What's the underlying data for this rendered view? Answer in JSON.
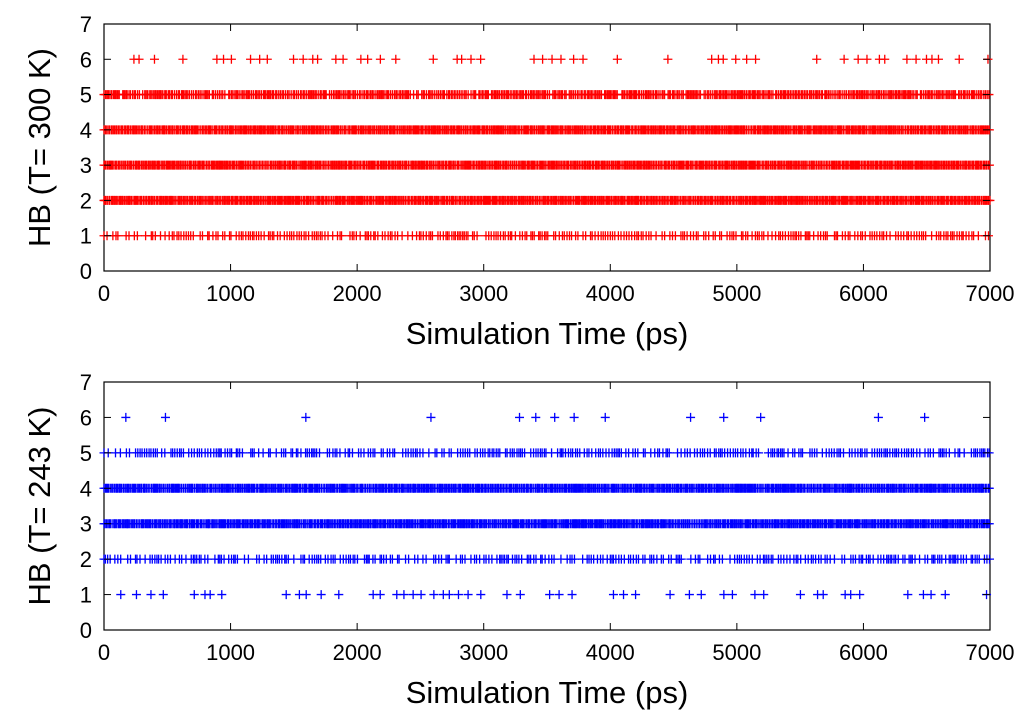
{
  "chart_data": [
    {
      "type": "scatter",
      "xlabel": "Simulation Time (ps)",
      "ylabel": "HB (T= 300 K)",
      "xlim": [
        0,
        7000
      ],
      "ylim": [
        0,
        7
      ],
      "xticks": [
        "0",
        "1000",
        "2000",
        "3000",
        "4000",
        "5000",
        "6000",
        "7000"
      ],
      "yticks": [
        "0",
        "1",
        "2",
        "3",
        "4",
        "5",
        "6",
        "7"
      ],
      "marker": "+",
      "color": "#ff0000",
      "grid": false,
      "legend": "none",
      "series": [
        {
          "y": 6,
          "density": "sparse",
          "x_min": 100,
          "x_max": 7000
        },
        {
          "y": 5,
          "density": "near-continuous",
          "x_min": 0,
          "x_max": 7000
        },
        {
          "y": 4,
          "density": "continuous",
          "x_min": 0,
          "x_max": 7000
        },
        {
          "y": 3,
          "density": "continuous",
          "x_min": 0,
          "x_max": 7000
        },
        {
          "y": 2,
          "density": "continuous",
          "x_min": 0,
          "x_max": 7000
        },
        {
          "y": 1,
          "density": "dense",
          "x_min": 0,
          "x_max": 7000
        }
      ]
    },
    {
      "type": "scatter",
      "xlabel": "Simulation Time (ps)",
      "ylabel": "HB (T= 243 K)",
      "xlim": [
        0,
        7000
      ],
      "ylim": [
        0,
        7
      ],
      "xticks": [
        "0",
        "1000",
        "2000",
        "3000",
        "4000",
        "5000",
        "6000",
        "7000"
      ],
      "yticks": [
        "0",
        "1",
        "2",
        "3",
        "4",
        "5",
        "6",
        "7"
      ],
      "marker": "+",
      "color": "#0000ff",
      "grid": false,
      "legend": "none",
      "series": [
        {
          "y": 6,
          "density": "very-sparse",
          "x_min": 100,
          "x_max": 7000
        },
        {
          "y": 5,
          "density": "dense",
          "x_min": 0,
          "x_max": 7000
        },
        {
          "y": 4,
          "density": "continuous",
          "x_min": 0,
          "x_max": 7000
        },
        {
          "y": 3,
          "density": "continuous",
          "x_min": 0,
          "x_max": 7000
        },
        {
          "y": 2,
          "density": "dense",
          "x_min": 0,
          "x_max": 7000
        },
        {
          "y": 1,
          "density": "sparse",
          "x_min": 0,
          "x_max": 7000
        }
      ]
    }
  ]
}
